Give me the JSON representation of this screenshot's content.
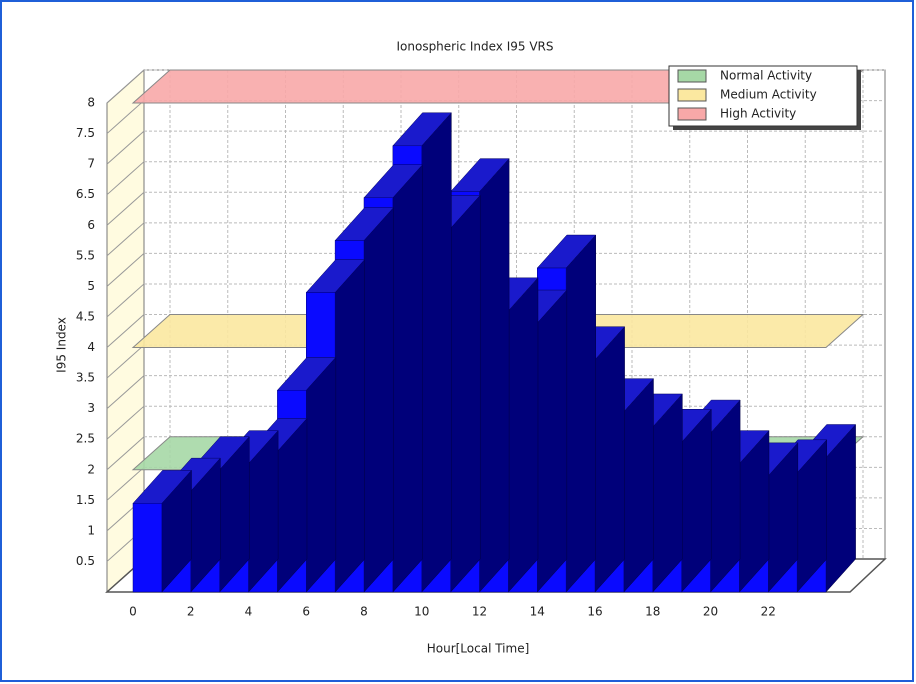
{
  "chart_data": {
    "type": "bar3d",
    "title": "Ionospheric Index I95 VRS",
    "x_label": "Hour[Local Time]",
    "y_label": "I95 Index",
    "categories": [
      "0",
      null,
      "2",
      null,
      "4",
      null,
      "6",
      null,
      "8",
      null,
      "10",
      null,
      "12",
      null,
      "14",
      null,
      "16",
      null,
      "18",
      null,
      "20",
      null,
      "22",
      null
    ],
    "values": [
      1.45,
      1.65,
      2.0,
      2.1,
      2.3,
      3.3,
      4.9,
      5.75,
      6.45,
      7.3,
      5.95,
      6.55,
      4.6,
      4.4,
      5.3,
      3.8,
      2.95,
      2.7,
      2.45,
      2.6,
      2.1,
      1.9,
      1.95,
      2.2
    ],
    "color": "#0a0aff",
    "ylim": [
      0,
      8
    ],
    "yticks": [
      0.5,
      1,
      1.5,
      2,
      2.5,
      3,
      3.5,
      4,
      4.5,
      5,
      5.5,
      6,
      6.5,
      7,
      7.5,
      8
    ],
    "grid": true,
    "bands": [
      {
        "name": "Normal Activity",
        "color": "#a6d8a6",
        "value": 2
      },
      {
        "name": "Medium Activity",
        "color": "#fbe8a0",
        "value": 4
      },
      {
        "name": "High Activity",
        "color": "#f8a8a8",
        "value": 8
      }
    ]
  }
}
